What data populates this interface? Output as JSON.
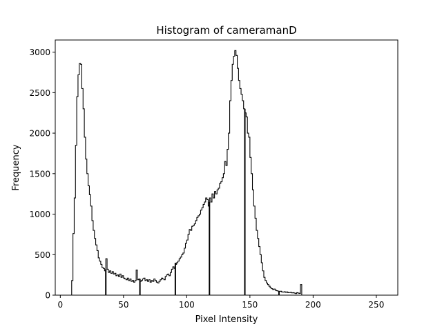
{
  "chart_data": {
    "type": "histogram",
    "title": "Histogram of cameramanD",
    "xlabel": "Pixel Intensity",
    "ylabel": "Frequency",
    "xlim": [
      -4,
      267
    ],
    "ylim": [
      0,
      3150
    ],
    "grid": false,
    "legend": "none",
    "style": "step",
    "line_color": "#000000",
    "x_ticks": [
      0,
      50,
      100,
      150,
      200,
      250
    ],
    "x_tick_labels": [
      "0",
      "50",
      "100",
      "150",
      "200",
      "250"
    ],
    "y_ticks": [
      0,
      500,
      1000,
      1500,
      2000,
      2500,
      3000
    ],
    "y_tick_labels": [
      "0",
      "500",
      "1000",
      "1500",
      "2000",
      "2500",
      "3000"
    ],
    "bins": {
      "start": 8,
      "width": 1,
      "counts": [
        0,
        180,
        760,
        1200,
        1850,
        2450,
        2720,
        2860,
        2850,
        2550,
        2300,
        1950,
        1680,
        1500,
        1350,
        1240,
        1100,
        920,
        800,
        700,
        620,
        550,
        460,
        420,
        380,
        340,
        330,
        300,
        450,
        320,
        280,
        300,
        270,
        290,
        260,
        270,
        240,
        250,
        230,
        260,
        220,
        240,
        210,
        200,
        190,
        210,
        180,
        200,
        170,
        180,
        160,
        180,
        310,
        190,
        200,
        170,
        180,
        200,
        210,
        180,
        190,
        170,
        190,
        160,
        180,
        170,
        200,
        180,
        160,
        150,
        170,
        190,
        210,
        200,
        190,
        230,
        250,
        260,
        240,
        280,
        320,
        350,
        330,
        380,
        400,
        420,
        450,
        470,
        500,
        520,
        580,
        640,
        680,
        750,
        810,
        800,
        850,
        860,
        880,
        920,
        960,
        980,
        1000,
        1050,
        1080,
        1120,
        1150,
        1200,
        1180,
        1100,
        1200,
        1150,
        1250,
        1200,
        1280,
        1250,
        1300,
        1320,
        1380,
        1400,
        1450,
        1500,
        1650,
        1600,
        1800,
        2000,
        2400,
        2650,
        2850,
        2950,
        3020,
        2960,
        2800,
        2650,
        2550,
        2480,
        2400,
        2300,
        2250,
        2200,
        2000,
        1950,
        1700,
        1500,
        1300,
        1100,
        950,
        800,
        700,
        600,
        500,
        400,
        300,
        220,
        180,
        150,
        130,
        110,
        90,
        80,
        70,
        75,
        60,
        55,
        50,
        45,
        48,
        40,
        38,
        42,
        35,
        40,
        30,
        32,
        35,
        28,
        30,
        25,
        20,
        30,
        25,
        22,
        130,
        0
      ],
      "drops": [
        {
          "x": 36,
          "y": 0
        },
        {
          "x": 63,
          "y": 0
        },
        {
          "x": 91,
          "y": 0
        },
        {
          "x": 118,
          "y": 0
        },
        {
          "x": 146,
          "y": 0
        },
        {
          "x": 173,
          "y": 0
        },
        {
          "x": 201,
          "y": 0
        }
      ]
    }
  }
}
